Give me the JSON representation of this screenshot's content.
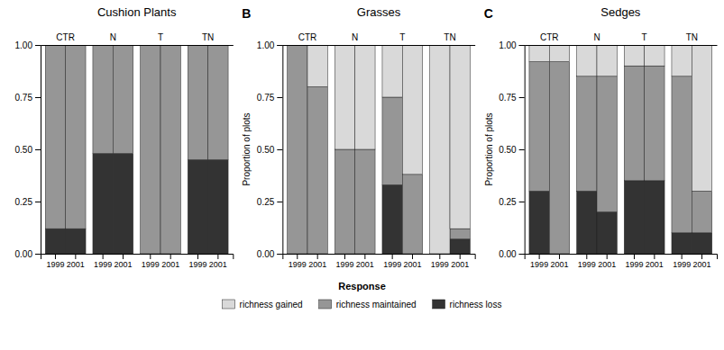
{
  "chart_data": [
    {
      "type": "bar",
      "title": "Cushion Plants",
      "stacked": true,
      "grid": false,
      "legend": "bottom",
      "legend_title": "Response",
      "groups": [
        "CTR",
        "N",
        "T",
        "TN"
      ],
      "categories": [
        "1999",
        "2001",
        "1999",
        "2001",
        "1999",
        "2001",
        "1999",
        "2001"
      ],
      "series": [
        {
          "name": "richness gained",
          "color": "#d9d9d9",
          "values": [
            0.0,
            0.0,
            0.0,
            0.0,
            0.0,
            0.0,
            0.0,
            0.0
          ]
        },
        {
          "name": "richness maintained",
          "color": "#969696",
          "values": [
            0.88,
            0.88,
            0.52,
            0.52,
            1.0,
            1.0,
            0.55,
            0.55
          ]
        },
        {
          "name": "richness loss",
          "color": "#333333",
          "values": [
            0.12,
            0.12,
            0.48,
            0.48,
            0.0,
            0.0,
            0.45,
            0.45
          ]
        }
      ],
      "ylim": [
        0,
        1.0
      ],
      "yticks": [
        {
          "value": 0,
          "label": "0.00"
        },
        {
          "value": 0.25,
          "label": "0.25"
        },
        {
          "value": 0.5,
          "label": "0.50"
        },
        {
          "value": 0.75,
          "label": "0.75"
        },
        {
          "value": 1.0,
          "label": "1.00"
        }
      ]
    },
    {
      "type": "bar",
      "title": "Grasses",
      "label": "B",
      "y_label": "Proportion of plots",
      "stacked": true,
      "grid": false,
      "groups": [
        "CTR",
        "N",
        "T",
        "TN"
      ],
      "categories": [
        "1999",
        "2001",
        "1999",
        "2001",
        "1999",
        "2001",
        "1999",
        "2001"
      ],
      "series": [
        {
          "name": "richness gained",
          "color": "#d9d9d9",
          "values": [
            0.0,
            0.2,
            0.5,
            0.5,
            0.25,
            0.62,
            1.0,
            0.88
          ]
        },
        {
          "name": "richness maintained",
          "color": "#969696",
          "values": [
            1.0,
            0.8,
            0.5,
            0.5,
            0.42,
            0.38,
            0.0,
            0.05
          ]
        },
        {
          "name": "richness loss",
          "color": "#333333",
          "values": [
            0.0,
            0.0,
            0.0,
            0.0,
            0.33,
            0.0,
            0.0,
            0.07
          ]
        }
      ],
      "ylim": [
        0,
        1.0
      ],
      "yticks": [
        {
          "value": 0,
          "label": "0.00"
        },
        {
          "value": 0.25,
          "label": "0.25"
        },
        {
          "value": 0.5,
          "label": "0.50"
        },
        {
          "value": 0.75,
          "label": "0.75"
        },
        {
          "value": 1.0,
          "label": "1.00"
        }
      ]
    },
    {
      "type": "bar",
      "title": "Sedges",
      "label": "C",
      "y_label": "Proportion of plots",
      "stacked": true,
      "grid": false,
      "groups": [
        "CTR",
        "N",
        "T",
        "TN"
      ],
      "categories": [
        "1999",
        "2001",
        "1999",
        "2001",
        "1999",
        "2001",
        "1999",
        "2001"
      ],
      "series": [
        {
          "name": "richness gained",
          "color": "#d9d9d9",
          "values": [
            0.08,
            0.08,
            0.15,
            0.15,
            0.1,
            0.1,
            0.15,
            0.7
          ]
        },
        {
          "name": "richness maintained",
          "color": "#969696",
          "values": [
            0.62,
            0.92,
            0.55,
            0.65,
            0.55,
            0.55,
            0.75,
            0.2
          ]
        },
        {
          "name": "richness loss",
          "color": "#333333",
          "values": [
            0.3,
            0.0,
            0.3,
            0.2,
            0.35,
            0.35,
            0.1,
            0.1
          ]
        }
      ],
      "ylim": [
        0,
        1.0
      ],
      "yticks": [
        {
          "value": 0,
          "label": "0.00"
        },
        {
          "value": 0.25,
          "label": "0.25"
        },
        {
          "value": 0.5,
          "label": "0.50"
        },
        {
          "value": 0.75,
          "label": "0.75"
        },
        {
          "value": 1.0,
          "label": "1.00"
        }
      ]
    }
  ]
}
